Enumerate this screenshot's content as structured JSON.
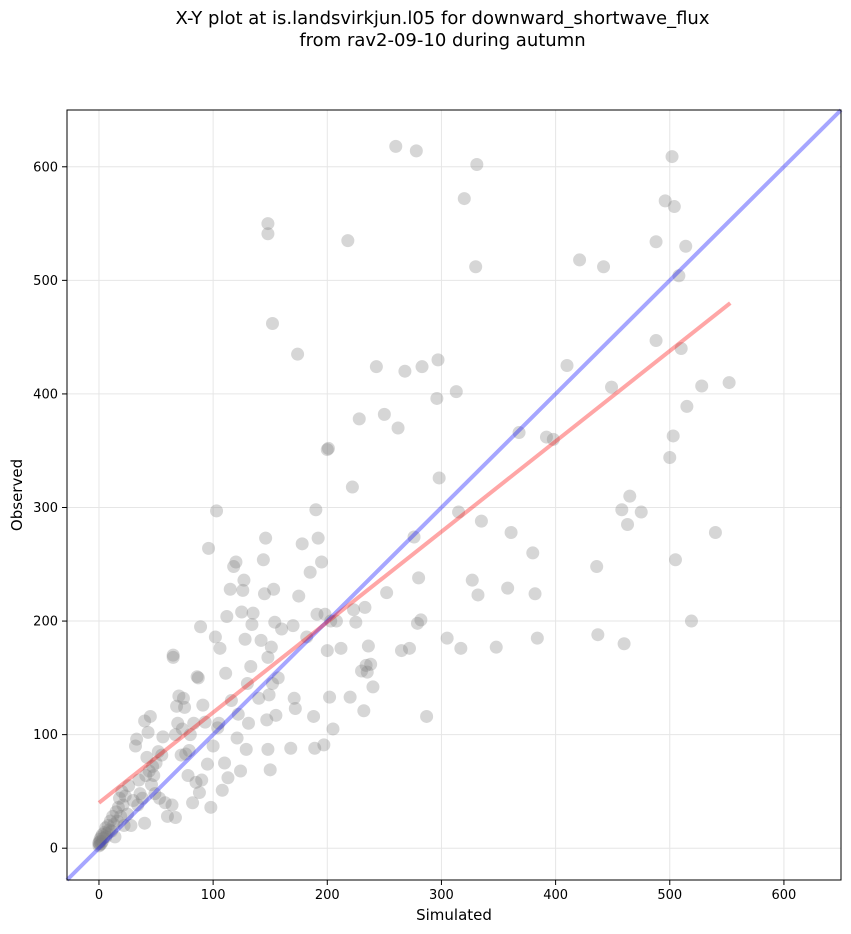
{
  "chart_data": {
    "type": "scatter",
    "title_line1": "X-Y plot at is.landsvirkjun.l05 for downward_shortwave_flux",
    "title_line2": "from rav2-09-10 during autumn",
    "xlabel": "Simulated",
    "ylabel": "Observed",
    "xlim": [
      -28,
      650
    ],
    "ylim": [
      -28,
      650
    ],
    "xticks": [
      0,
      100,
      200,
      300,
      400,
      500,
      600
    ],
    "yticks": [
      0,
      100,
      200,
      300,
      400,
      500,
      600
    ],
    "grid": true,
    "colors": {
      "points": "#808080",
      "identity_line": "#0000ff",
      "fit_line": "#ff0000"
    },
    "identity_line": {
      "x": [
        -28,
        650
      ],
      "y": [
        -28,
        650
      ]
    },
    "fit_line": {
      "x": [
        0,
        553
      ],
      "y": [
        40,
        480
      ]
    },
    "points": [
      [
        0,
        2
      ],
      [
        0,
        4
      ],
      [
        0,
        5
      ],
      [
        1,
        3
      ],
      [
        1,
        6
      ],
      [
        1,
        8
      ],
      [
        2,
        4
      ],
      [
        2,
        10
      ],
      [
        3,
        6
      ],
      [
        3,
        12
      ],
      [
        4,
        9
      ],
      [
        5,
        14
      ],
      [
        6,
        10
      ],
      [
        6,
        18
      ],
      [
        7,
        13
      ],
      [
        8,
        20
      ],
      [
        9,
        16
      ],
      [
        10,
        24
      ],
      [
        11,
        15
      ],
      [
        12,
        28
      ],
      [
        13,
        21
      ],
      [
        14,
        10
      ],
      [
        15,
        32
      ],
      [
        16,
        24
      ],
      [
        17,
        36
      ],
      [
        18,
        44
      ],
      [
        19,
        28
      ],
      [
        20,
        50
      ],
      [
        21,
        38
      ],
      [
        22,
        20
      ],
      [
        23,
        46
      ],
      [
        25,
        30
      ],
      [
        26,
        55
      ],
      [
        28,
        20
      ],
      [
        30,
        42
      ],
      [
        32,
        90
      ],
      [
        33,
        96
      ],
      [
        34,
        38
      ],
      [
        35,
        60
      ],
      [
        36,
        48
      ],
      [
        38,
        44
      ],
      [
        40,
        112
      ],
      [
        40,
        22
      ],
      [
        41,
        64
      ],
      [
        42,
        80
      ],
      [
        43,
        102
      ],
      [
        44,
        68
      ],
      [
        45,
        116
      ],
      [
        46,
        56
      ],
      [
        47,
        72
      ],
      [
        48,
        64
      ],
      [
        49,
        48
      ],
      [
        50,
        75
      ],
      [
        52,
        85
      ],
      [
        53,
        44
      ],
      [
        55,
        82
      ],
      [
        56,
        98
      ],
      [
        58,
        40
      ],
      [
        60,
        28
      ],
      [
        64,
        38
      ],
      [
        65,
        170
      ],
      [
        65,
        168
      ],
      [
        67,
        27
      ],
      [
        67,
        100
      ],
      [
        68,
        125
      ],
      [
        69,
        110
      ],
      [
        70,
        134
      ],
      [
        72,
        82
      ],
      [
        73,
        105
      ],
      [
        74,
        132
      ],
      [
        75,
        124
      ],
      [
        76,
        83
      ],
      [
        78,
        64
      ],
      [
        79,
        86
      ],
      [
        80,
        100
      ],
      [
        82,
        40
      ],
      [
        83,
        110
      ],
      [
        85,
        58
      ],
      [
        86,
        151
      ],
      [
        87,
        150
      ],
      [
        88,
        49
      ],
      [
        89,
        195
      ],
      [
        90,
        60
      ],
      [
        91,
        126
      ],
      [
        93,
        111
      ],
      [
        95,
        74
      ],
      [
        96,
        264
      ],
      [
        98,
        36
      ],
      [
        100,
        90
      ],
      [
        102,
        186
      ],
      [
        103,
        297
      ],
      [
        104,
        106
      ],
      [
        105,
        110
      ],
      [
        106,
        176
      ],
      [
        108,
        51
      ],
      [
        110,
        75
      ],
      [
        111,
        154
      ],
      [
        112,
        204
      ],
      [
        113,
        62
      ],
      [
        115,
        228
      ],
      [
        116,
        130
      ],
      [
        118,
        248
      ],
      [
        120,
        252
      ],
      [
        121,
        97
      ],
      [
        122,
        118
      ],
      [
        124,
        68
      ],
      [
        125,
        208
      ],
      [
        126,
        227
      ],
      [
        127,
        236
      ],
      [
        128,
        184
      ],
      [
        129,
        87
      ],
      [
        130,
        145
      ],
      [
        131,
        110
      ],
      [
        133,
        160
      ],
      [
        134,
        197
      ],
      [
        135,
        207
      ],
      [
        140,
        132
      ],
      [
        142,
        183
      ],
      [
        144,
        254
      ],
      [
        145,
        224
      ],
      [
        146,
        273
      ],
      [
        147,
        113
      ],
      [
        148,
        87
      ],
      [
        148,
        168
      ],
      [
        149,
        135
      ],
      [
        150,
        69
      ],
      [
        151,
        177
      ],
      [
        152,
        145
      ],
      [
        153,
        228
      ],
      [
        154,
        199
      ],
      [
        155,
        117
      ],
      [
        157,
        150
      ],
      [
        160,
        193
      ],
      [
        168,
        88
      ],
      [
        170,
        196
      ],
      [
        171,
        132
      ],
      [
        172,
        123
      ],
      [
        175,
        222
      ],
      [
        178,
        268
      ],
      [
        182,
        186
      ],
      [
        185,
        243
      ],
      [
        188,
        116
      ],
      [
        189,
        88
      ],
      [
        190,
        298
      ],
      [
        191,
        206
      ],
      [
        192,
        273
      ],
      [
        195,
        252
      ],
      [
        197,
        91
      ],
      [
        198,
        206
      ],
      [
        200,
        174
      ],
      [
        201,
        352
      ],
      [
        202,
        133
      ],
      [
        203,
        200
      ],
      [
        205,
        105
      ],
      [
        208,
        200
      ],
      [
        212,
        176
      ],
      [
        218,
        535
      ],
      [
        220,
        133
      ],
      [
        222,
        318
      ],
      [
        223,
        210
      ],
      [
        225,
        199
      ],
      [
        228,
        378
      ],
      [
        230,
        156
      ],
      [
        232,
        121
      ],
      [
        233,
        212
      ],
      [
        234,
        161
      ],
      [
        235,
        155
      ],
      [
        236,
        178
      ],
      [
        238,
        162
      ],
      [
        240,
        142
      ],
      [
        243,
        424
      ],
      [
        250,
        382
      ],
      [
        252,
        225
      ],
      [
        260,
        618
      ],
      [
        262,
        370
      ],
      [
        265,
        174
      ],
      [
        268,
        420
      ],
      [
        272,
        176
      ],
      [
        276,
        274
      ],
      [
        278,
        614
      ],
      [
        279,
        198
      ],
      [
        280,
        238
      ],
      [
        282,
        201
      ],
      [
        283,
        424
      ],
      [
        287,
        116
      ],
      [
        296,
        396
      ],
      [
        297,
        430
      ],
      [
        298,
        326
      ],
      [
        305,
        185
      ],
      [
        313,
        402
      ],
      [
        315,
        296
      ],
      [
        317,
        176
      ],
      [
        320,
        572
      ],
      [
        327,
        236
      ],
      [
        330,
        512
      ],
      [
        331,
        602
      ],
      [
        332,
        223
      ],
      [
        335,
        288
      ],
      [
        348,
        177
      ],
      [
        358,
        229
      ],
      [
        361,
        278
      ],
      [
        368,
        366
      ],
      [
        380,
        260
      ],
      [
        382,
        224
      ],
      [
        384,
        185
      ],
      [
        392,
        362
      ],
      [
        398,
        360
      ],
      [
        410,
        425
      ],
      [
        421,
        518
      ],
      [
        436,
        248
      ],
      [
        437,
        188
      ],
      [
        442,
        512
      ],
      [
        449,
        406
      ],
      [
        458,
        298
      ],
      [
        460,
        180
      ],
      [
        463,
        285
      ],
      [
        465,
        310
      ],
      [
        475,
        296
      ],
      [
        488,
        534
      ],
      [
        488,
        447
      ],
      [
        496,
        570
      ],
      [
        500,
        344
      ],
      [
        502,
        609
      ],
      [
        503,
        363
      ],
      [
        504,
        565
      ],
      [
        505,
        254
      ],
      [
        508,
        504
      ],
      [
        510,
        440
      ],
      [
        514,
        530
      ],
      [
        515,
        389
      ],
      [
        519,
        200
      ],
      [
        528,
        407
      ],
      [
        540,
        278
      ],
      [
        552,
        410
      ],
      [
        148,
        550
      ],
      [
        148,
        541
      ],
      [
        152,
        462
      ],
      [
        174,
        435
      ],
      [
        200,
        351
      ]
    ]
  }
}
